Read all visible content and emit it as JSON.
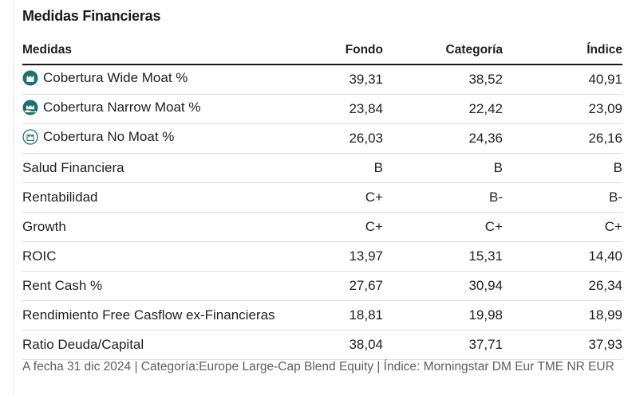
{
  "title": "Medidas Financieras",
  "headers": {
    "measure": "Medidas",
    "fund": "Fondo",
    "category": "Categoría",
    "index": "Índice"
  },
  "rows": [
    {
      "label": "Cobertura Wide Moat %",
      "icon": "wide-moat-icon",
      "fund": "39,31",
      "category": "38,52",
      "index": "40,91"
    },
    {
      "label": "Cobertura Narrow Moat %",
      "icon": "narrow-moat-icon",
      "fund": "23,84",
      "category": "22,42",
      "index": "23,09"
    },
    {
      "label": "Cobertura No Moat %",
      "icon": "no-moat-icon",
      "fund": "26,03",
      "category": "24,36",
      "index": "26,16"
    },
    {
      "label": "Salud Financiera",
      "fund": "B",
      "category": "B",
      "index": "B"
    },
    {
      "label": "Rentabilidad",
      "fund": "C+",
      "category": "B-",
      "index": "B-"
    },
    {
      "label": "Growth",
      "fund": "C+",
      "category": "C+",
      "index": "C+"
    },
    {
      "label": "ROIC",
      "fund": "13,97",
      "category": "15,31",
      "index": "14,40"
    },
    {
      "label": "Rent Cash %",
      "fund": "27,67",
      "category": "30,94",
      "index": "26,34"
    },
    {
      "label": "Rendimiento Free Casflow ex-Financieras",
      "fund": "18,81",
      "category": "19,98",
      "index": "18,99"
    },
    {
      "label": "Ratio Deuda/Capital",
      "fund": "38,04",
      "category": "37,71",
      "index": "37,93"
    }
  ],
  "footer": "A fecha 31 dic 2024 | Categoría:Europe Large-Cap Blend Equity | Índice: Morningstar DM Eur TME NR EUR",
  "colors": {
    "moat_icon": "#1f6f6a"
  }
}
